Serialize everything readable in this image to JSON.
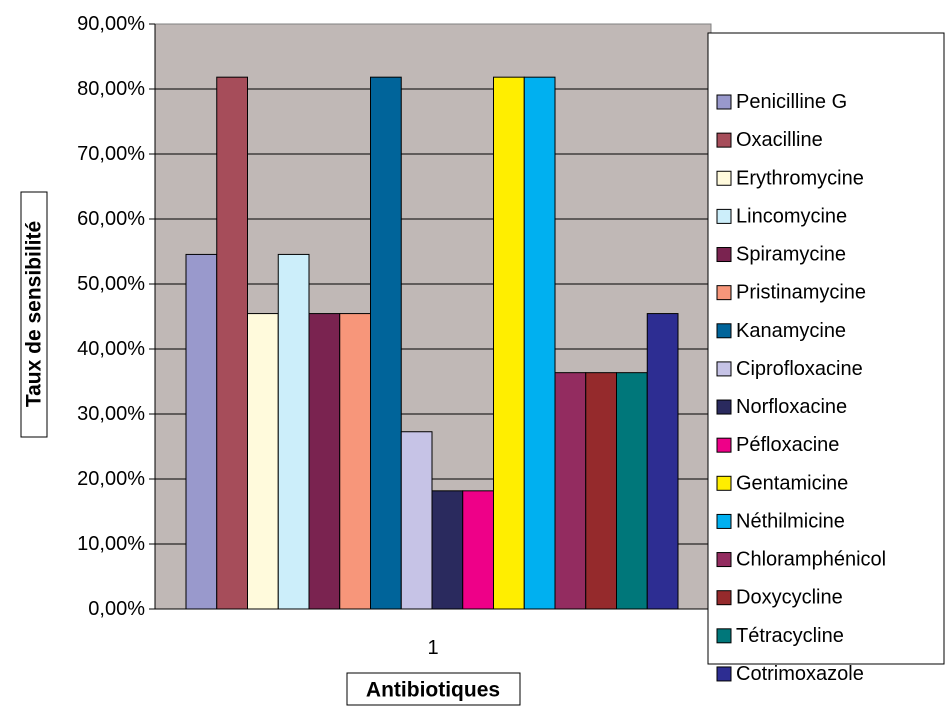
{
  "chart_data": {
    "type": "bar",
    "categories": [
      "1"
    ],
    "xlabel": "Antibiotiques",
    "ylabel": "Taux de sensibilité",
    "ylim": [
      0,
      0.9
    ],
    "yticks": [
      "0,00%",
      "10,00%",
      "20,00%",
      "30,00%",
      "40,00%",
      "50,00%",
      "60,00%",
      "70,00%",
      "80,00%",
      "90,00%"
    ],
    "grid": true,
    "plot_background": "#c0b8b6",
    "legend_position": "right",
    "series": [
      {
        "name": "Penicilline G",
        "values": [
          0.5455
        ],
        "color": "#9999cc"
      },
      {
        "name": "Oxacilline",
        "values": [
          0.8182
        ],
        "color": "#a64d5a"
      },
      {
        "name": "Erythromycine",
        "values": [
          0.4545
        ],
        "color": "#fffadc"
      },
      {
        "name": "Lincomycine",
        "values": [
          0.5455
        ],
        "color": "#cceefa"
      },
      {
        "name": "Spiramycine",
        "values": [
          0.4545
        ],
        "color": "#7a2350"
      },
      {
        "name": "Pristinamycine",
        "values": [
          0.4545
        ],
        "color": "#f7967a"
      },
      {
        "name": "Kanamycine",
        "values": [
          0.8182
        ],
        "color": "#00649a"
      },
      {
        "name": "Ciprofloxacine",
        "values": [
          0.2727
        ],
        "color": "#c6c3e6"
      },
      {
        "name": "Norfloxacine",
        "values": [
          0.1818
        ],
        "color": "#2a2a5e"
      },
      {
        "name": "Péfloxacine",
        "values": [
          0.1818
        ],
        "color": "#ee0088"
      },
      {
        "name": "Gentamicine",
        "values": [
          0.8182
        ],
        "color": "#ffee00"
      },
      {
        "name": "Néthilmicine",
        "values": [
          0.8182
        ],
        "color": "#00b0f0"
      },
      {
        "name": "Chloramphénicol",
        "values": [
          0.3636
        ],
        "color": "#932c60"
      },
      {
        "name": "Doxycycline",
        "values": [
          0.3636
        ],
        "color": "#952a2c"
      },
      {
        "name": "Tétracycline",
        "values": [
          0.3636
        ],
        "color": "#00777a"
      },
      {
        "name": "Cotrimoxazole",
        "values": [
          0.4545
        ],
        "color": "#2d2d92"
      }
    ]
  }
}
